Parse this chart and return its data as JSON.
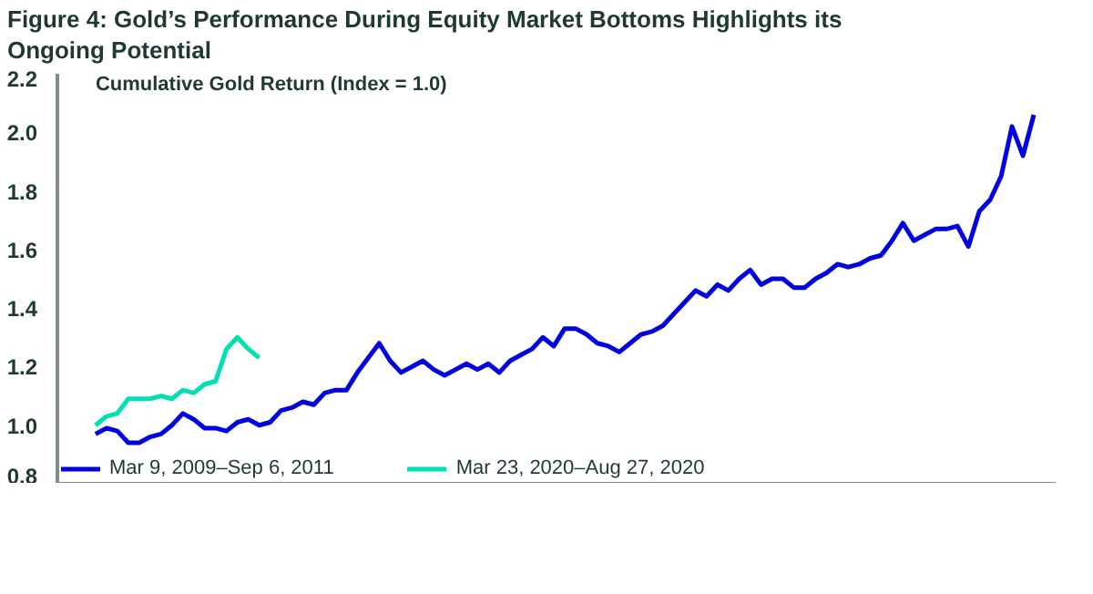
{
  "chart_data": {
    "type": "line",
    "title": "Figure 4: Gold’s Performance During Equity Market Bottoms Highlights its Ongoing Potential",
    "ylabel": "Cumulative Gold Return (Index = 1.0)",
    "categories": [
      null,
      null,
      null,
      null,
      null,
      null,
      null,
      null,
      null,
      null,
      null,
      null,
      null,
      null,
      null,
      null,
      null,
      null,
      null,
      null,
      null,
      null,
      null,
      null,
      null,
      null,
      null,
      null,
      null,
      null,
      null,
      null,
      null,
      null,
      null,
      null,
      null,
      null,
      null,
      null,
      null,
      null,
      null,
      null,
      null,
      null,
      null,
      null,
      null,
      null,
      null,
      null,
      null,
      null,
      null,
      null,
      null,
      null,
      null,
      null,
      null,
      null,
      null,
      null,
      null,
      null,
      null,
      null,
      null,
      null,
      null,
      null,
      null,
      null,
      null,
      null,
      null,
      null,
      null,
      null,
      null,
      null,
      null,
      null,
      null,
      null,
      null
    ],
    "series": [
      {
        "name": "Mar 9, 2009–Sep 6, 2011",
        "color": "#0000e0",
        "values": [
          0.97,
          0.99,
          0.98,
          0.94,
          0.94,
          0.96,
          0.97,
          1.0,
          1.04,
          1.02,
          0.99,
          0.99,
          0.98,
          1.01,
          1.02,
          1.0,
          1.01,
          1.05,
          1.06,
          1.08,
          1.07,
          1.11,
          1.12,
          1.12,
          1.18,
          1.23,
          1.28,
          1.22,
          1.18,
          1.2,
          1.22,
          1.19,
          1.17,
          1.19,
          1.21,
          1.19,
          1.21,
          1.18,
          1.22,
          1.24,
          1.26,
          1.3,
          1.27,
          1.33,
          1.33,
          1.31,
          1.28,
          1.27,
          1.25,
          1.28,
          1.31,
          1.32,
          1.34,
          1.38,
          1.42,
          1.46,
          1.44,
          1.48,
          1.46,
          1.5,
          1.53,
          1.48,
          1.5,
          1.5,
          1.47,
          1.47,
          1.5,
          1.52,
          1.55,
          1.54,
          1.55,
          1.57,
          1.58,
          1.63,
          1.69,
          1.63,
          1.65,
          1.67,
          1.67,
          1.68,
          1.61,
          1.73,
          1.77,
          1.85,
          2.02,
          1.92,
          2.06
        ]
      },
      {
        "name": "Mar 23, 2020–Aug 27, 2020",
        "color": "#00e0b0",
        "values": [
          1.0,
          1.03,
          1.04,
          1.09,
          1.09,
          1.09,
          1.1,
          1.09,
          1.12,
          1.11,
          1.14,
          1.15,
          1.26,
          1.3,
          1.26,
          1.23,
          null,
          null,
          null,
          null,
          null,
          null,
          null,
          null,
          null,
          null,
          null,
          null,
          null,
          null,
          null,
          null,
          null,
          null,
          null,
          null,
          null,
          null,
          null,
          null,
          null,
          null,
          null,
          null,
          null,
          null,
          null,
          null,
          null,
          null,
          null,
          null,
          null,
          null,
          null,
          null,
          null,
          null,
          null,
          null,
          null,
          null,
          null,
          null,
          null,
          null,
          null,
          null,
          null,
          null,
          null,
          null,
          null,
          null,
          null,
          null,
          null,
          null,
          null,
          null,
          null,
          null,
          null,
          null,
          null,
          null,
          null
        ]
      }
    ],
    "ylim": [
      0.8,
      2.2
    ],
    "yticks": [
      0.8,
      {
        "value": 1.0,
        "label": "1.0"
      },
      1.2,
      1.4,
      1.6,
      1.8,
      {
        "value": 2.0,
        "label": "2.0"
      },
      2.2
    ],
    "tick_labels": "y",
    "grid": false,
    "legend": "bottom"
  }
}
